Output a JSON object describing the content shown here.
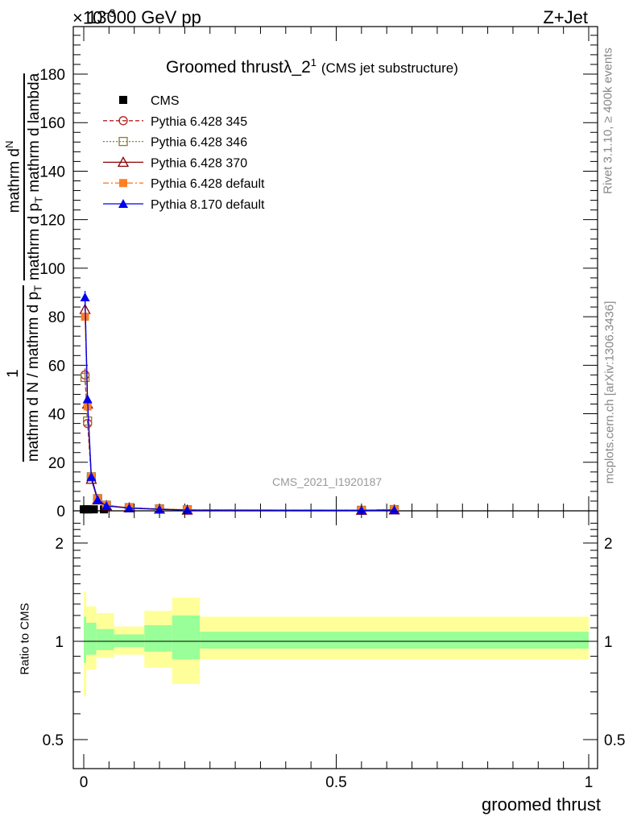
{
  "header": {
    "energy": "13000 GeV pp",
    "process": "Z+Jet",
    "exponent_mult": "×10",
    "exponent_power": "−3"
  },
  "plot_title": {
    "main_pre": "Groomed thrust",
    "lambda": "λ_2",
    "superscript": "1",
    "suffix": "(CMS jet substructure)"
  },
  "side_labels": {
    "rivet": "Rivet 3.1.10, ≥ 400k events",
    "mcplots": "mcplots.cern.ch [arXiv:1306.3436]"
  },
  "analysis_id": "CMS_2021_I1920187",
  "y_label_main": {
    "num_1": "1",
    "den_1": "mathrm d N / mathrm d p",
    "den_2": "T",
    "num_2a": "mathrm d",
    "num_2b": "N",
    "den_3a": "mathrm d p",
    "den_3b": "T",
    "den_3c": " mathrm d lambda"
  },
  "y_label_ratio": "Ratio to CMS",
  "x_label": "groomed thrust",
  "legend": [
    {
      "label": "CMS"
    },
    {
      "label": "Pythia 6.428 345"
    },
    {
      "label": "Pythia 6.428 346"
    },
    {
      "label": "Pythia 6.428 370"
    },
    {
      "label": "Pythia 6.428 default"
    },
    {
      "label": "Pythia 8.170 default"
    }
  ],
  "chart_data": [
    {
      "type": "line",
      "panel": "main",
      "xlim": [
        -0.02,
        1.0
      ],
      "ylim": [
        0,
        200
      ],
      "y_multiplier": "×10^-3",
      "yticks": [
        0,
        20,
        40,
        60,
        80,
        100,
        120,
        140,
        160,
        180
      ],
      "ytick_labels": [
        "0",
        "20",
        "40",
        "60",
        "80",
        "100",
        "120",
        "140",
        "160",
        "180"
      ],
      "xticks": [
        0,
        0.5,
        1
      ],
      "grid": false,
      "legend_position": "top-left",
      "series": [
        {
          "name": "CMS",
          "color": "#000000",
          "marker": "square-filled",
          "x": [
            0.0,
            0.005,
            0.01,
            0.02,
            0.04
          ],
          "y": [
            0.6,
            0.6,
            0.6,
            0.6,
            0.6
          ]
        },
        {
          "name": "Pythia 6.428 345",
          "color": "#b22222",
          "dash": "5,3",
          "marker": "circle-open",
          "x": [
            0.0025,
            0.0075,
            0.015,
            0.0275,
            0.045,
            0.09,
            0.15,
            0.205,
            0.55,
            0.615
          ],
          "y": [
            56,
            36,
            14,
            5,
            2.2,
            1.2,
            0.7,
            0.3,
            0.2,
            0.5
          ]
        },
        {
          "name": "Pythia 6.428 346",
          "color": "#8b7a3a",
          "dash": "2,2",
          "marker": "square-open",
          "x": [
            0.0025,
            0.0075,
            0.015,
            0.0275,
            0.045,
            0.09,
            0.15,
            0.205,
            0.55,
            0.615
          ],
          "y": [
            55,
            37,
            14,
            5,
            2.3,
            1.3,
            0.8,
            0.4,
            0.2,
            0.5
          ]
        },
        {
          "name": "Pythia 6.428 370",
          "color": "#8b0000",
          "dash": "",
          "marker": "triangle-open",
          "x": [
            0.0025,
            0.0075,
            0.015,
            0.0275,
            0.045,
            0.09,
            0.15,
            0.205,
            0.55,
            0.615
          ],
          "y": [
            83,
            44,
            13,
            4.5,
            2.1,
            1.2,
            0.7,
            0.3,
            0.2,
            0.4
          ]
        },
        {
          "name": "Pythia 6.428 default",
          "color": "#ff7f27",
          "dash": "7,3,2,3",
          "marker": "square-filled",
          "x": [
            0.0025,
            0.0075,
            0.015,
            0.0275,
            0.045,
            0.09,
            0.15,
            0.205,
            0.55,
            0.615
          ],
          "y": [
            80,
            43,
            14,
            5,
            2.3,
            1.3,
            0.8,
            0.4,
            0.2,
            0.5
          ]
        },
        {
          "name": "Pythia 8.170 default",
          "color": "#0000ee",
          "dash": "",
          "marker": "triangle-filled",
          "x": [
            0.0025,
            0.0075,
            0.015,
            0.0275,
            0.045,
            0.09,
            0.15,
            0.205,
            0.55,
            0.615
          ],
          "y": [
            88,
            46,
            14,
            4.5,
            2.0,
            1.1,
            0.6,
            0.3,
            0.2,
            0.3
          ]
        }
      ]
    },
    {
      "type": "area",
      "panel": "ratio",
      "ylim": [
        0.4,
        2.4
      ],
      "y_scale": "log",
      "yticks": [
        0.5,
        1,
        2
      ],
      "ytick_labels": [
        "0.5",
        "1",
        "2"
      ],
      "xticks": [
        0,
        0.5,
        1
      ],
      "xtick_labels": [
        "0",
        "0.5",
        "1"
      ],
      "ratio_line": 1.0,
      "bands": [
        {
          "x0": 0.0,
          "x1": 0.005,
          "yellow": [
            0.68,
            1.42
          ],
          "green": [
            0.86,
            1.19
          ]
        },
        {
          "x0": 0.005,
          "x1": 0.025,
          "yellow": [
            0.82,
            1.28
          ],
          "green": [
            0.91,
            1.14
          ]
        },
        {
          "x0": 0.025,
          "x1": 0.06,
          "yellow": [
            0.89,
            1.22
          ],
          "green": [
            0.94,
            1.09
          ]
        },
        {
          "x0": 0.06,
          "x1": 0.12,
          "yellow": [
            0.91,
            1.11
          ],
          "green": [
            0.96,
            1.05
          ]
        },
        {
          "x0": 0.12,
          "x1": 0.175,
          "yellow": [
            0.83,
            1.24
          ],
          "green": [
            0.93,
            1.12
          ]
        },
        {
          "x0": 0.175,
          "x1": 0.23,
          "yellow": [
            0.74,
            1.36
          ],
          "green": [
            0.88,
            1.2
          ]
        },
        {
          "x0": 0.23,
          "x1": 1.0,
          "yellow": [
            0.88,
            1.19
          ],
          "green": [
            0.95,
            1.07
          ]
        }
      ]
    }
  ]
}
